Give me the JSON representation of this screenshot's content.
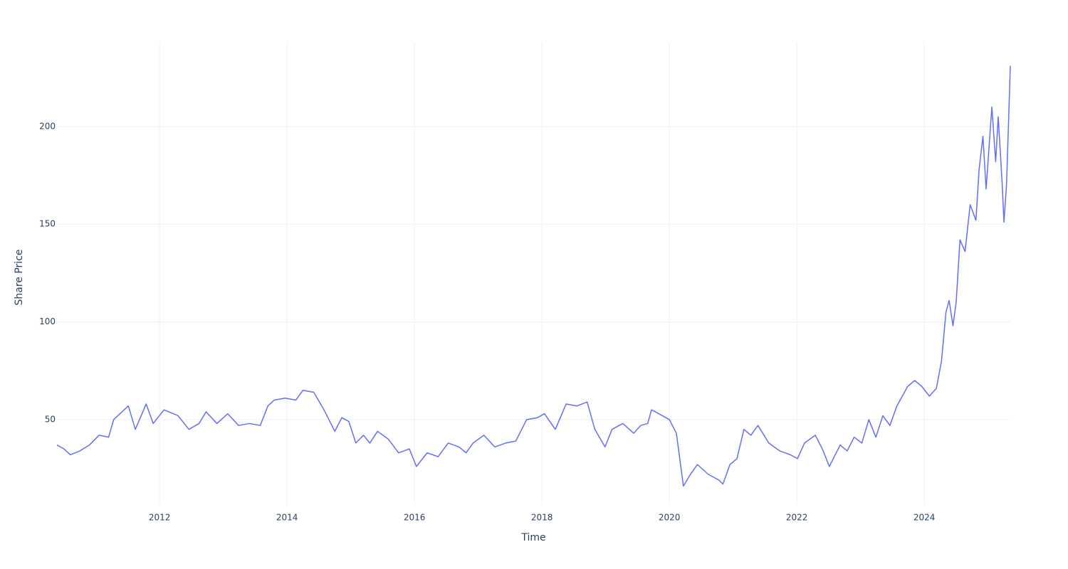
{
  "chart_data": {
    "type": "line",
    "x_label": "Time",
    "y_label": "Share Price",
    "xlim": [
      2010.39,
      2025.35
    ],
    "xticks": [
      2012,
      2014,
      2016,
      2018,
      2020,
      2022,
      2024
    ],
    "ylim": [
      6.3,
      242.9
    ],
    "yticks": [
      50,
      100,
      150,
      200
    ],
    "grid": true,
    "x": [
      2010.39,
      2010.5,
      2010.6,
      2010.75,
      2010.9,
      2011.05,
      2011.2,
      2011.28,
      2011.51,
      2011.62,
      2011.79,
      2011.9,
      2012.07,
      2012.29,
      2012.46,
      2012.62,
      2012.73,
      2012.9,
      2013.07,
      2013.24,
      2013.41,
      2013.58,
      2013.7,
      2013.8,
      2013.97,
      2014.14,
      2014.25,
      2014.42,
      2014.58,
      2014.75,
      2014.86,
      2014.97,
      2015.08,
      2015.2,
      2015.3,
      2015.42,
      2015.59,
      2015.75,
      2015.92,
      2016.03,
      2016.2,
      2016.37,
      2016.53,
      2016.7,
      2016.81,
      2016.92,
      2017.09,
      2017.26,
      2017.43,
      2017.59,
      2017.76,
      2017.93,
      2018.04,
      2018.21,
      2018.38,
      2018.55,
      2018.71,
      2018.83,
      2018.99,
      2019.1,
      2019.27,
      2019.44,
      2019.55,
      2019.66,
      2019.72,
      2019.89,
      2020.0,
      2020.11,
      2020.22,
      2020.33,
      2020.44,
      2020.61,
      2020.78,
      2020.84,
      2020.95,
      2021.06,
      2021.17,
      2021.28,
      2021.39,
      2021.56,
      2021.73,
      2021.9,
      2022.01,
      2022.12,
      2022.29,
      2022.4,
      2022.51,
      2022.68,
      2022.79,
      2022.9,
      2023.02,
      2023.13,
      2023.24,
      2023.35,
      2023.46,
      2023.57,
      2023.74,
      2023.85,
      2023.96,
      2024.08,
      2024.19,
      2024.27,
      2024.34,
      2024.39,
      2024.45,
      2024.5,
      2024.56,
      2024.64,
      2024.72,
      2024.81,
      2024.86,
      2024.92,
      2024.97,
      2025.06,
      2025.12,
      2025.16,
      2025.22,
      2025.25,
      2025.29,
      2025.32,
      2025.35
    ],
    "series": [
      {
        "name": "Share Price",
        "color": "#636efa",
        "values": [
          37,
          35,
          32,
          34,
          37,
          42,
          41,
          50,
          57,
          45,
          58,
          48,
          55,
          52,
          45,
          48,
          54,
          48,
          53,
          47,
          48,
          47,
          57,
          60,
          61,
          60,
          65,
          64,
          55,
          44,
          51,
          49,
          38,
          42,
          38,
          44,
          40,
          33,
          35,
          26,
          33,
          31,
          38,
          36,
          33,
          38,
          42,
          36,
          38,
          39,
          50,
          51,
          53,
          45,
          58,
          57,
          59,
          45,
          36,
          45,
          48,
          43,
          47,
          48,
          55,
          52,
          50,
          43,
          16,
          22,
          27,
          22,
          19,
          17,
          27,
          30,
          45,
          42,
          47,
          38,
          34,
          32,
          30,
          38,
          42,
          35,
          26,
          37,
          34,
          41,
          38,
          50,
          41,
          52,
          47,
          57,
          67,
          70,
          67,
          62,
          66,
          80,
          105,
          111,
          98,
          110,
          142,
          136,
          160,
          152,
          178,
          195,
          168,
          210,
          182,
          205,
          172,
          151,
          170,
          200,
          231
        ]
      }
    ]
  }
}
